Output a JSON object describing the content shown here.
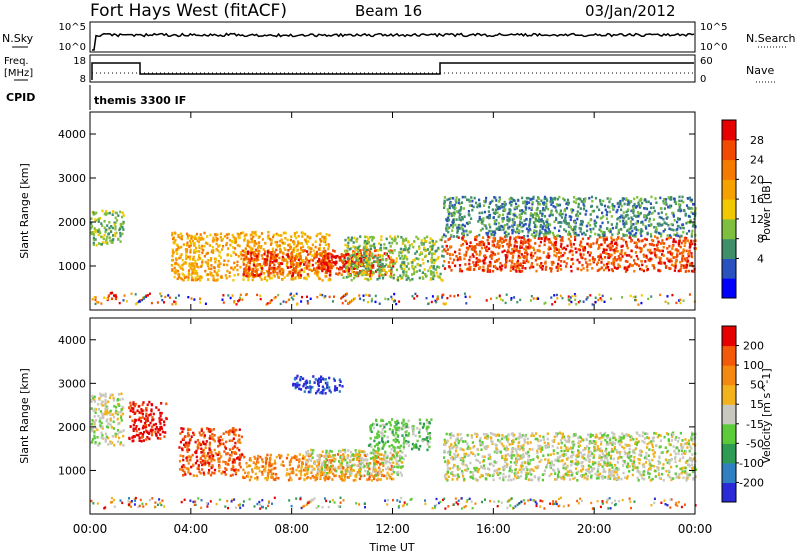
{
  "header": {
    "station": "Fort Hays West (fitACF)",
    "beam": "Beam 16",
    "date": "03/Jan/2012"
  },
  "top_panels": {
    "nsky_label": "N.Sky",
    "nsearch_label": "N.Search",
    "freq_label_line1": "Freq.",
    "freq_label_line2": "[MHz]",
    "nave_label": "Nave",
    "cpid_label": "CPID",
    "cpid_text": "themis 3300 IF",
    "nsky_ticks": [
      "10^5",
      "10^0"
    ],
    "nsearch_ticks": [
      "10^5",
      "10^0"
    ],
    "freq_ticks": [
      "18",
      "8"
    ],
    "nave_ticks": [
      "60",
      "0"
    ]
  },
  "chart_data": [
    {
      "type": "heatmap",
      "name": "power",
      "ylabel": "Slant Range [km]",
      "colorbar_label": "Power [dB]",
      "colorbar_ticks": [
        "28",
        "24",
        "20",
        "16",
        "12",
        "8",
        "4"
      ],
      "colorbar_colors": [
        "#0000ff",
        "#2a52be",
        "#3f8f6b",
        "#7fbf3f",
        "#f2c800",
        "#f5a200",
        "#f57a00",
        "#f24a00",
        "#e60000"
      ],
      "ylim": [
        0,
        4500
      ],
      "yticks": [
        "4000",
        "3000",
        "2000",
        "1000"
      ],
      "xlim_hours": [
        0,
        24
      ],
      "bands": [
        {
          "x0": 0.0,
          "x1": 1.3,
          "y0": 1500,
          "y1": 2300,
          "level": 3
        },
        {
          "x0": 3.2,
          "x1": 9.5,
          "y0": 700,
          "y1": 1800,
          "level": 5
        },
        {
          "x0": 6.0,
          "x1": 12.0,
          "y0": 800,
          "y1": 1400,
          "level": 7
        },
        {
          "x0": 9.0,
          "x1": 11.0,
          "y0": 900,
          "y1": 1300,
          "level": 8
        },
        {
          "x0": 10.0,
          "x1": 14.0,
          "y0": 700,
          "y1": 1700,
          "level": 3
        },
        {
          "x0": 14.0,
          "x1": 24.0,
          "y0": 900,
          "y1": 1700,
          "level": 7
        },
        {
          "x0": 14.0,
          "x1": 24.0,
          "y0": 1700,
          "y1": 2600,
          "level": 2
        },
        {
          "x0": 0.5,
          "x1": 1.0,
          "y0": 250,
          "y1": 450,
          "level": 8
        }
      ]
    },
    {
      "type": "heatmap",
      "name": "velocity",
      "ylabel": "Slant Range [km]",
      "colorbar_label": "Velocity [m s^-1]",
      "colorbar_ticks": [
        "200",
        "100",
        "50",
        "15",
        "-15",
        "-50",
        "-100",
        "-200"
      ],
      "colorbar_colors": [
        "#2a2ad6",
        "#2f7fc1",
        "#2e9b55",
        "#5ccb3a",
        "#c8c8c0",
        "#f2b21c",
        "#f5880e",
        "#f25a0a",
        "#e60000"
      ],
      "ylim": [
        0,
        4500
      ],
      "yticks": [
        "4000",
        "3000",
        "2000",
        "1000"
      ],
      "xlim_hours": [
        0,
        24
      ],
      "bands": [
        {
          "x0": 0.0,
          "x1": 1.3,
          "y0": 1600,
          "y1": 2800,
          "level": 4
        },
        {
          "x0": 1.5,
          "x1": 3.0,
          "y0": 1700,
          "y1": 2600,
          "level": 8
        },
        {
          "x0": 3.5,
          "x1": 6.0,
          "y0": 900,
          "y1": 2000,
          "level": 7
        },
        {
          "x0": 6.0,
          "x1": 12.0,
          "y0": 800,
          "y1": 1400,
          "level": 6
        },
        {
          "x0": 8.5,
          "x1": 12.5,
          "y0": 900,
          "y1": 1500,
          "level": 4
        },
        {
          "x0": 11.0,
          "x1": 13.5,
          "y0": 1500,
          "y1": 2200,
          "level": 3
        },
        {
          "x0": 14.0,
          "x1": 24.0,
          "y0": 800,
          "y1": 1900,
          "level": 4
        },
        {
          "x0": 8.0,
          "x1": 10.0,
          "y0": 2800,
          "y1": 3200,
          "level": 0
        }
      ]
    }
  ],
  "xaxis": {
    "ticks": [
      "00:00",
      "04:00",
      "08:00",
      "12:00",
      "16:00",
      "20:00",
      "00:00"
    ],
    "label": "Time UT"
  }
}
